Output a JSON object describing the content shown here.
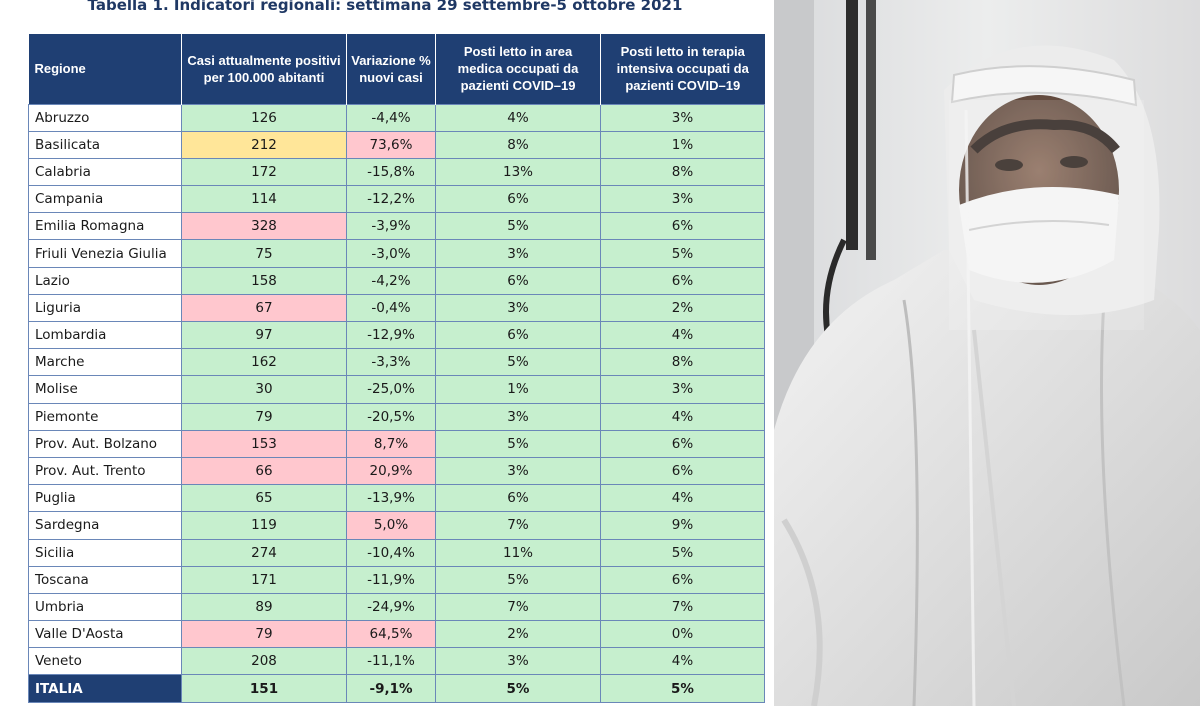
{
  "title": "Tabella 1. Indicatori regionali: settimana 29 settembre-5 ottobre 2021",
  "headers": [
    "Regione",
    "Casi attualmente positivi per 100.000 abitanti",
    "Variazione % nuovi casi",
    "Posti letto in area medica occupati da pazienti COVID–19",
    "Posti letto in terapia intensiva occupati da pazienti COVID–19"
  ],
  "rows": [
    {
      "region": "Abruzzo",
      "cases": "126",
      "var": "-4,4%",
      "medical": "4%",
      "icu": "3%",
      "c1": "green",
      "c2": "green"
    },
    {
      "region": "Basilicata",
      "cases": "212",
      "var": "73,6%",
      "medical": "8%",
      "icu": "1%",
      "c1": "yellow",
      "c2": "red"
    },
    {
      "region": "Calabria",
      "cases": "172",
      "var": "-15,8%",
      "medical": "13%",
      "icu": "8%",
      "c1": "green",
      "c2": "green"
    },
    {
      "region": "Campania",
      "cases": "114",
      "var": "-12,2%",
      "medical": "6%",
      "icu": "3%",
      "c1": "green",
      "c2": "green"
    },
    {
      "region": "Emilia Romagna",
      "cases": "328",
      "var": "-3,9%",
      "medical": "5%",
      "icu": "6%",
      "c1": "red",
      "c2": "green"
    },
    {
      "region": "Friuli Venezia Giulia",
      "cases": "75",
      "var": "-3,0%",
      "medical": "3%",
      "icu": "5%",
      "c1": "green",
      "c2": "green"
    },
    {
      "region": "Lazio",
      "cases": "158",
      "var": "-4,2%",
      "medical": "6%",
      "icu": "6%",
      "c1": "green",
      "c2": "green"
    },
    {
      "region": "Liguria",
      "cases": "67",
      "var": "-0,4%",
      "medical": "3%",
      "icu": "2%",
      "c1": "red",
      "c2": "green"
    },
    {
      "region": "Lombardia",
      "cases": "97",
      "var": "-12,9%",
      "medical": "6%",
      "icu": "4%",
      "c1": "green",
      "c2": "green"
    },
    {
      "region": "Marche",
      "cases": "162",
      "var": "-3,3%",
      "medical": "5%",
      "icu": "8%",
      "c1": "green",
      "c2": "green"
    },
    {
      "region": "Molise",
      "cases": "30",
      "var": "-25,0%",
      "medical": "1%",
      "icu": "3%",
      "c1": "green",
      "c2": "green"
    },
    {
      "region": "Piemonte",
      "cases": "79",
      "var": "-20,5%",
      "medical": "3%",
      "icu": "4%",
      "c1": "green",
      "c2": "green"
    },
    {
      "region": "Prov. Aut. Bolzano",
      "cases": "153",
      "var": "8,7%",
      "medical": "5%",
      "icu": "6%",
      "c1": "red",
      "c2": "red"
    },
    {
      "region": "Prov. Aut. Trento",
      "cases": "66",
      "var": "20,9%",
      "medical": "3%",
      "icu": "6%",
      "c1": "red",
      "c2": "red"
    },
    {
      "region": "Puglia",
      "cases": "65",
      "var": "-13,9%",
      "medical": "6%",
      "icu": "4%",
      "c1": "green",
      "c2": "green"
    },
    {
      "region": "Sardegna",
      "cases": "119",
      "var": "5,0%",
      "medical": "7%",
      "icu": "9%",
      "c1": "green",
      "c2": "red"
    },
    {
      "region": "Sicilia",
      "cases": "274",
      "var": "-10,4%",
      "medical": "11%",
      "icu": "5%",
      "c1": "green",
      "c2": "green"
    },
    {
      "region": "Toscana",
      "cases": "171",
      "var": "-11,9%",
      "medical": "5%",
      "icu": "6%",
      "c1": "green",
      "c2": "green"
    },
    {
      "region": "Umbria",
      "cases": "89",
      "var": "-24,9%",
      "medical": "7%",
      "icu": "7%",
      "c1": "green",
      "c2": "green"
    },
    {
      "region": "Valle D'Aosta",
      "cases": "79",
      "var": "64,5%",
      "medical": "2%",
      "icu": "0%",
      "c1": "red",
      "c2": "red"
    },
    {
      "region": "Veneto",
      "cases": "208",
      "var": "-11,1%",
      "medical": "3%",
      "icu": "4%",
      "c1": "green",
      "c2": "green"
    }
  ],
  "total": {
    "region": "ITALIA",
    "cases": "151",
    "var": "-9,1%",
    "medical": "5%",
    "icu": "5%"
  },
  "colors": {
    "header": "#1f3f73",
    "green": "#c6efce",
    "yellow": "#ffe699",
    "red": "#ffc7ce"
  }
}
